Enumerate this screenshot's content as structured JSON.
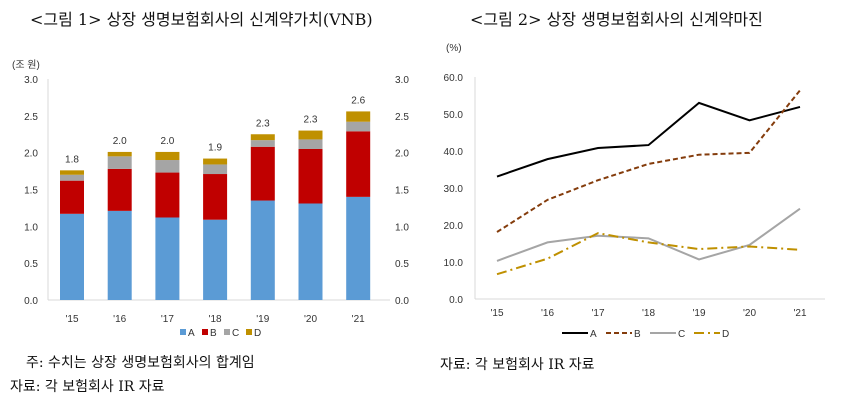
{
  "chart_data": [
    {
      "type": "bar",
      "stacked": true,
      "title": "<그림 1> 상장 생명보험회사의 신계약가치(VNB)",
      "unit_label": "(조 원)",
      "categories": [
        "'15",
        "'16",
        "'17",
        "'18",
        "'19",
        "'20",
        "'21"
      ],
      "series": [
        {
          "name": "A",
          "color": "#5b9bd5",
          "values": [
            1.17,
            1.21,
            1.12,
            1.09,
            1.35,
            1.31,
            1.4
          ]
        },
        {
          "name": "B",
          "color": "#c00000",
          "values": [
            0.45,
            0.57,
            0.61,
            0.62,
            0.73,
            0.74,
            0.89
          ]
        },
        {
          "name": "C",
          "color": "#a5a5a5",
          "values": [
            0.08,
            0.17,
            0.17,
            0.13,
            0.09,
            0.13,
            0.13
          ]
        },
        {
          "name": "D",
          "color": "#bf9000",
          "values": [
            0.06,
            0.06,
            0.11,
            0.08,
            0.08,
            0.12,
            0.14
          ]
        }
      ],
      "total_labels": [
        "1.8",
        "2.0",
        "2.0",
        "1.9",
        "2.3",
        "2.3",
        "2.6"
      ],
      "ylim": [
        0,
        3.0
      ],
      "yticks": [
        "0.0",
        "0.5",
        "1.0",
        "1.5",
        "2.0",
        "2.5",
        "3.0"
      ],
      "secondary_axis": true,
      "grid": false,
      "legend": "bottom"
    },
    {
      "type": "line",
      "title": "<그림 2> 상장 생명보험회사의 신계약마진",
      "unit_label": "(%)",
      "categories": [
        "'15",
        "'16",
        "'17",
        "'18",
        "'19",
        "'20",
        "'21"
      ],
      "series": [
        {
          "name": "A",
          "color": "#000000",
          "style": "solid",
          "values": [
            33.1,
            37.8,
            40.8,
            41.6,
            53.0,
            48.3,
            51.9
          ]
        },
        {
          "name": "B",
          "color": "#843c0c",
          "style": "dashed",
          "values": [
            18.1,
            26.8,
            32.1,
            36.5,
            39.0,
            39.5,
            56.4
          ]
        },
        {
          "name": "C",
          "color": "#a5a5a5",
          "style": "solid",
          "values": [
            10.3,
            15.3,
            17.1,
            16.4,
            10.7,
            14.6,
            24.4
          ]
        },
        {
          "name": "D",
          "color": "#bf9000",
          "style": "dash-dot",
          "values": [
            6.7,
            10.9,
            17.8,
            15.3,
            13.5,
            14.2,
            13.3
          ]
        }
      ],
      "ylim": [
        0,
        60
      ],
      "yticks": [
        "0.0",
        "10.0",
        "20.0",
        "30.0",
        "40.0",
        "50.0",
        "60.0"
      ],
      "grid": false,
      "legend": "bottom"
    }
  ],
  "notes": {
    "left_note": "주: 수치는 상장 생명보험회사의 합계임",
    "left_source": "자료: 각 보험회사 IR 자료",
    "right_source": "자료: 각 보험회사 IR 자료"
  }
}
